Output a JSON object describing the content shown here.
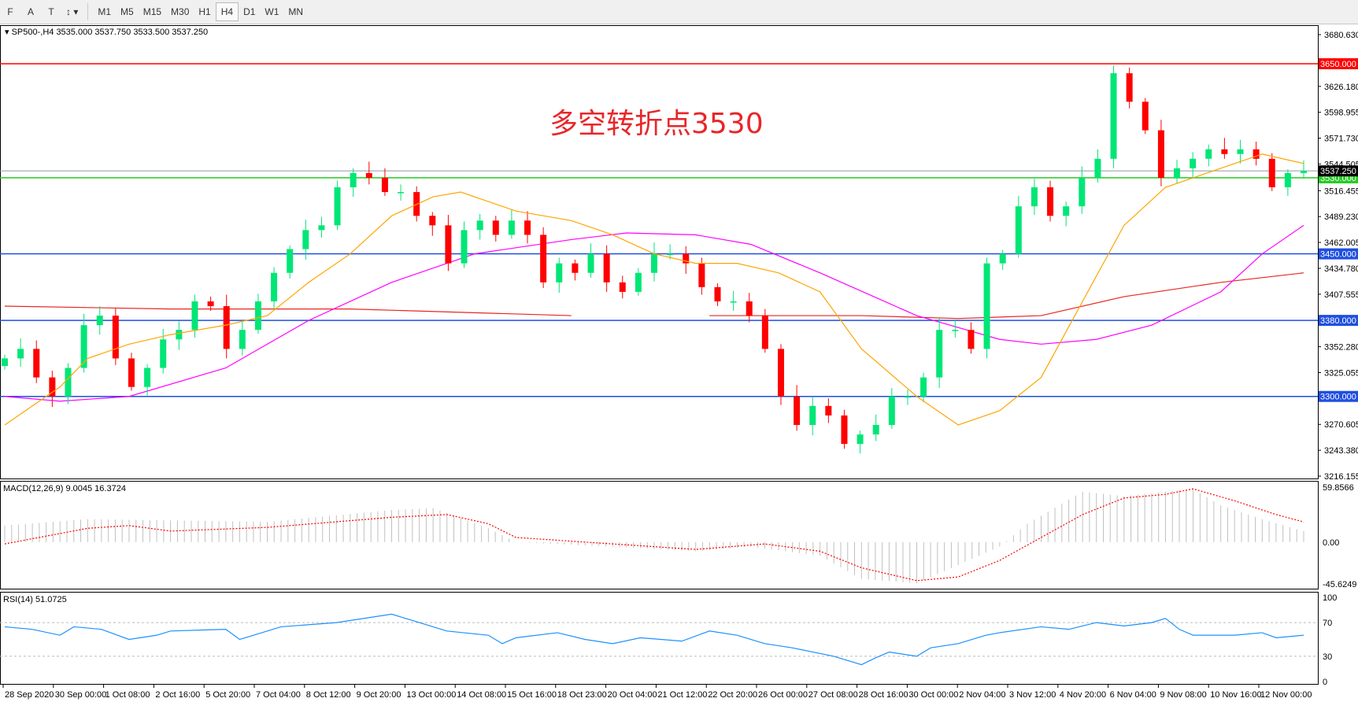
{
  "toolbar": {
    "tools": [
      "F",
      "A",
      "T",
      "↕"
    ],
    "timeframes": [
      "M1",
      "M5",
      "M15",
      "M30",
      "H1",
      "H4",
      "D1",
      "W1",
      "MN"
    ],
    "active": "H4"
  },
  "header": {
    "symbol_line": "SP500-,H4  3535.000 3537.750 3533.500 3537.250"
  },
  "annotation": "多空转折点3530",
  "colors": {
    "bull": "#00e676",
    "bear": "#ff0000",
    "ma_fast": "#ffa500",
    "ma_mid": "#ff00ff",
    "ma_slow": "#e8261f",
    "macd_hist": "#c0c0c0",
    "macd_signal": "#ff0000",
    "rsi": "#1e90ff"
  },
  "chart_data": [
    {
      "type": "candlestick",
      "title": "SP500-,H4",
      "ylim": [
        3216.155,
        3680.63
      ],
      "price_ticks": [
        "3680.630",
        "3626.180",
        "3598.955",
        "3571.730",
        "3544.505",
        "3516.455",
        "3489.230",
        "3462.005",
        "3434.780",
        "3407.555",
        "3352.280",
        "3325.055",
        "3270.605",
        "3243.380",
        "3216.155"
      ],
      "levels": [
        {
          "value": 3650,
          "label": "3650.000",
          "color": "#ff0000"
        },
        {
          "value": 3530,
          "label": "3530.000",
          "color": "#22cc22"
        },
        {
          "value": 3450,
          "label": "3450.000",
          "color": "#1f4fe0"
        },
        {
          "value": 3380,
          "label": "3380.000",
          "color": "#1f4fe0"
        },
        {
          "value": 3300,
          "label": "3300.000",
          "color": "#1f4fe0"
        }
      ],
      "last_price": {
        "value": 3537.25,
        "label": "3537.250"
      },
      "closes": [
        3340,
        3350,
        3320,
        3300,
        3330,
        3375,
        3385,
        3340,
        3310,
        3330,
        3360,
        3370,
        3400,
        3395,
        3350,
        3370,
        3400,
        3430,
        3455,
        3475,
        3480,
        3520,
        3535,
        3530,
        3515,
        3515,
        3490,
        3480,
        3440,
        3475,
        3485,
        3470,
        3485,
        3470,
        3420,
        3440,
        3430,
        3450,
        3420,
        3410,
        3430,
        3450,
        3450,
        3440,
        3415,
        3400,
        3400,
        3385,
        3350,
        3300,
        3270,
        3290,
        3280,
        3250,
        3260,
        3270,
        3300,
        3300,
        3320,
        3370,
        3370,
        3350,
        3440,
        3450,
        3500,
        3520,
        3490,
        3500,
        3530,
        3550,
        3640,
        3610,
        3580,
        3530,
        3540,
        3550,
        3560,
        3555,
        3560,
        3550,
        3520,
        3535,
        3537.25
      ],
      "ma_fast": [
        [
          0,
          3270
        ],
        [
          4,
          3310
        ],
        [
          6,
          3340
        ],
        [
          9,
          3355
        ],
        [
          12,
          3365
        ],
        [
          16,
          3375
        ],
        [
          19,
          3385
        ],
        [
          22,
          3420
        ],
        [
          25,
          3450
        ],
        [
          28,
          3490
        ],
        [
          31,
          3510
        ],
        [
          33,
          3515
        ],
        [
          37,
          3495
        ],
        [
          41,
          3485
        ],
        [
          44,
          3470
        ],
        [
          47,
          3450
        ],
        [
          50,
          3440
        ],
        [
          53,
          3440
        ],
        [
          56,
          3430
        ],
        [
          59,
          3410
        ],
        [
          62,
          3350
        ],
        [
          66,
          3300
        ],
        [
          69,
          3270
        ],
        [
          72,
          3285
        ],
        [
          75,
          3320
        ],
        [
          78,
          3400
        ],
        [
          81,
          3480
        ],
        [
          84,
          3520
        ],
        [
          86,
          3530
        ],
        [
          89,
          3545
        ],
        [
          91,
          3555
        ],
        [
          94,
          3545
        ]
      ],
      "ma_mid": [
        [
          0,
          3300
        ],
        [
          4,
          3295
        ],
        [
          9,
          3300
        ],
        [
          16,
          3330
        ],
        [
          22,
          3380
        ],
        [
          28,
          3420
        ],
        [
          34,
          3450
        ],
        [
          41,
          3465
        ],
        [
          45,
          3472
        ],
        [
          50,
          3470
        ],
        [
          54,
          3460
        ],
        [
          59,
          3430
        ],
        [
          66,
          3385
        ],
        [
          72,
          3360
        ],
        [
          75,
          3355
        ],
        [
          79,
          3360
        ],
        [
          83,
          3375
        ],
        [
          88,
          3410
        ],
        [
          91,
          3450
        ],
        [
          94,
          3480
        ]
      ],
      "ma_slow": [
        [
          [
            0,
            3395
          ],
          [
            12,
            3392
          ],
          [
            25,
            3392
          ],
          [
            41,
            3385
          ]
        ],
        [
          [
            51,
            3385
          ],
          [
            62,
            3385
          ],
          [
            69,
            3382
          ],
          [
            75,
            3385
          ],
          [
            81,
            3405
          ],
          [
            88,
            3420
          ],
          [
            94,
            3430
          ]
        ]
      ],
      "time_labels": [
        "28 Sep 2020",
        "30 Sep 00:00",
        "1 Oct 08:00",
        "2 Oct 16:00",
        "5 Oct 20:00",
        "7 Oct 04:00",
        "8 Oct 12:00",
        "9 Oct 20:00",
        "13 Oct 00:00",
        "14 Oct 08:00",
        "15 Oct 16:00",
        "18 Oct 23:00",
        "20 Oct 04:00",
        "21 Oct 12:00",
        "22 Oct 20:00",
        "26 Oct 00:00",
        "27 Oct 08:00",
        "28 Oct 16:00",
        "30 Oct 00:00",
        "2 Nov 04:00",
        "3 Nov 12:00",
        "4 Nov 20:00",
        "6 Nov 04:00",
        "9 Nov 08:00",
        "10 Nov 16:00",
        "12 Nov 00:00"
      ]
    },
    {
      "type": "bar",
      "title": "MACD(12,26,9) 9.0045 16.3724",
      "ylim": [
        -45.6249,
        59.8566
      ],
      "ticks": [
        "59.8566",
        "0.00",
        "-45.6249"
      ],
      "histogram": [
        [
          0,
          18
        ],
        [
          6,
          25
        ],
        [
          19,
          22
        ],
        [
          28,
          35
        ],
        [
          31,
          37
        ],
        [
          35,
          15
        ],
        [
          37,
          0
        ],
        [
          44,
          -5
        ],
        [
          50,
          -10
        ],
        [
          54,
          -5
        ],
        [
          59,
          -15
        ],
        [
          62,
          -40
        ],
        [
          66,
          -45
        ],
        [
          69,
          -25
        ],
        [
          72,
          -5
        ],
        [
          74,
          20
        ],
        [
          78,
          55
        ],
        [
          81,
          50
        ],
        [
          84,
          55
        ],
        [
          86,
          58
        ],
        [
          88,
          40
        ],
        [
          91,
          25
        ],
        [
          94,
          12
        ]
      ],
      "signal": [
        [
          0,
          -2
        ],
        [
          6,
          15
        ],
        [
          9,
          18
        ],
        [
          12,
          12
        ],
        [
          19,
          16
        ],
        [
          28,
          27
        ],
        [
          32,
          30
        ],
        [
          35,
          20
        ],
        [
          37,
          5
        ],
        [
          44,
          -2
        ],
        [
          50,
          -8
        ],
        [
          55,
          -2
        ],
        [
          59,
          -10
        ],
        [
          62,
          -28
        ],
        [
          66,
          -42
        ],
        [
          69,
          -38
        ],
        [
          72,
          -20
        ],
        [
          75,
          5
        ],
        [
          78,
          30
        ],
        [
          81,
          48
        ],
        [
          84,
          52
        ],
        [
          86,
          58
        ],
        [
          89,
          45
        ],
        [
          92,
          30
        ],
        [
          94,
          22
        ]
      ]
    },
    {
      "type": "line",
      "title": "RSI(14) 51.0725",
      "ylim": [
        0,
        100
      ],
      "ticks": [
        "100",
        "70",
        "30",
        "0"
      ],
      "levels": [
        70,
        30
      ],
      "rsi": [
        [
          0,
          65
        ],
        [
          2,
          62
        ],
        [
          4,
          55
        ],
        [
          5,
          65
        ],
        [
          7,
          62
        ],
        [
          9,
          50
        ],
        [
          11,
          55
        ],
        [
          12,
          60
        ],
        [
          16,
          62
        ],
        [
          17,
          50
        ],
        [
          18,
          55
        ],
        [
          20,
          65
        ],
        [
          24,
          70
        ],
        [
          26,
          75
        ],
        [
          28,
          80
        ],
        [
          30,
          70
        ],
        [
          32,
          60
        ],
        [
          35,
          55
        ],
        [
          36,
          45
        ],
        [
          37,
          52
        ],
        [
          40,
          58
        ],
        [
          42,
          50
        ],
        [
          44,
          45
        ],
        [
          46,
          52
        ],
        [
          49,
          48
        ],
        [
          51,
          60
        ],
        [
          53,
          55
        ],
        [
          55,
          45
        ],
        [
          57,
          40
        ],
        [
          60,
          30
        ],
        [
          62,
          20
        ],
        [
          63,
          28
        ],
        [
          64,
          35
        ],
        [
          66,
          30
        ],
        [
          67,
          40
        ],
        [
          69,
          45
        ],
        [
          71,
          55
        ],
        [
          72,
          58
        ],
        [
          75,
          65
        ],
        [
          77,
          62
        ],
        [
          79,
          70
        ],
        [
          80,
          68
        ],
        [
          81,
          66
        ],
        [
          83,
          70
        ],
        [
          84,
          75
        ],
        [
          85,
          62
        ],
        [
          86,
          55
        ],
        [
          89,
          55
        ],
        [
          91,
          58
        ],
        [
          92,
          52
        ],
        [
          94,
          55
        ]
      ]
    }
  ]
}
